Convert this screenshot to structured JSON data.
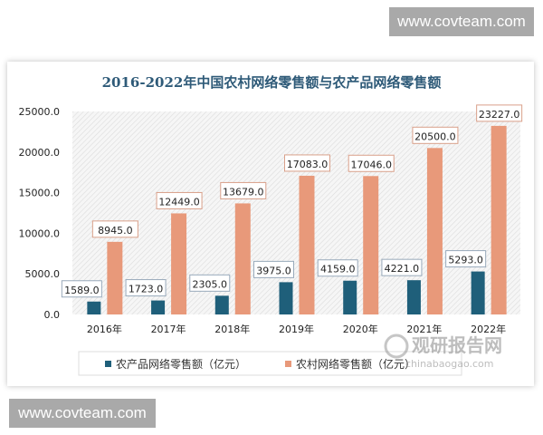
{
  "watermarks": {
    "top": "www.covteam.com",
    "bottom": "www.covteam.com",
    "logo_text": "观研报告网",
    "logo_url_text": "chinabaogao.com"
  },
  "chart_data": {
    "type": "bar",
    "title": "2016-2022年中国农村网络零售额与农产品网络零售额",
    "categories": [
      "2016年",
      "2017年",
      "2018年",
      "2019年",
      "2020年",
      "2021年",
      "2022年"
    ],
    "series": [
      {
        "name": "农产品网络零售额（亿元）",
        "color": "#1f5f7a",
        "values": [
          1589.0,
          1723.0,
          2305.0,
          3975.0,
          4159.0,
          4221.0,
          5293.0
        ]
      },
      {
        "name": "农村网络零售额（亿元）",
        "color": "#e8997a",
        "values": [
          8945.0,
          12449.0,
          13679.0,
          17083.0,
          17046.0,
          20500.0,
          23227.0
        ]
      }
    ],
    "ylim": [
      0,
      25000
    ],
    "yticks": [
      "0.0",
      "5000.0",
      "10000.0",
      "15000.0",
      "20000.0",
      "25000.0"
    ],
    "grid": false,
    "legend": "bottom",
    "title_color": "#2e5a78"
  }
}
